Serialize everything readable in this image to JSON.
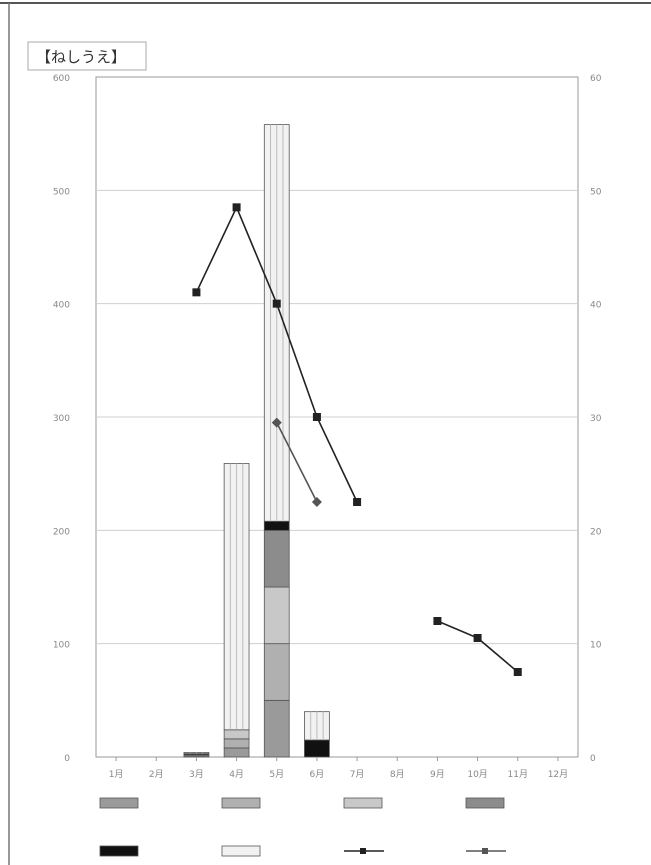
{
  "chart_data": {
    "type": "bar",
    "title": "【ねしうえ】",
    "categories": [
      "1月",
      "2月",
      "3月",
      "4月",
      "5月",
      "6月",
      "7月",
      "8月",
      "9月",
      "10月",
      "11月",
      "12月"
    ],
    "ylim": [
      0,
      600
    ],
    "y_ticks": [
      0,
      100,
      200,
      300,
      400,
      500,
      600
    ],
    "y2lim": [
      0,
      60
    ],
    "y2_ticks": [
      0,
      10,
      20,
      30,
      40,
      50,
      60
    ],
    "ylabel": "",
    "y2label": "",
    "grid": true,
    "legend_position": "bottom",
    "bar_series": [
      {
        "name": "",
        "color": "#9a9a9a",
        "values": [
          0,
          0,
          1,
          8,
          50,
          0,
          0,
          0,
          0,
          0,
          0,
          0
        ]
      },
      {
        "name": "",
        "color": "#b0b0b0",
        "values": [
          0,
          0,
          1,
          8,
          50,
          0,
          0,
          0,
          0,
          0,
          0,
          0
        ]
      },
      {
        "name": "",
        "color": "#c8c8c8",
        "values": [
          0,
          0,
          0,
          8,
          50,
          0,
          0,
          0,
          0,
          0,
          0,
          0
        ]
      },
      {
        "name": "",
        "color": "#8c8c8c",
        "values": [
          0,
          0,
          0,
          0,
          50,
          0,
          0,
          0,
          0,
          0,
          0,
          0
        ]
      },
      {
        "name": "",
        "color": "#111111",
        "values": [
          0,
          0,
          1,
          0,
          8,
          15,
          0,
          0,
          0,
          0,
          0,
          0
        ]
      },
      {
        "name": "",
        "color": "#f2f2f2",
        "values": [
          0,
          0,
          1,
          235,
          350,
          25,
          0,
          0,
          0,
          0,
          0,
          0
        ]
      }
    ],
    "line_series": [
      {
        "name": "",
        "color": "#222222",
        "marker": "square",
        "points": [
          [
            3,
            41
          ],
          [
            4,
            48.5
          ],
          [
            5,
            40
          ],
          [
            6,
            30
          ],
          [
            7,
            22.5
          ],
          [
            null,
            null
          ],
          [
            9,
            12
          ],
          [
            10,
            10.5
          ],
          [
            11,
            7.5
          ]
        ]
      },
      {
        "name": "",
        "color": "#555555",
        "marker": "diamond",
        "points": [
          [
            5,
            29.5
          ],
          [
            6,
            22.5
          ],
          [
            null,
            null
          ]
        ]
      }
    ],
    "legend": [
      "",
      "",
      "",
      "",
      "",
      "",
      "",
      ""
    ]
  }
}
